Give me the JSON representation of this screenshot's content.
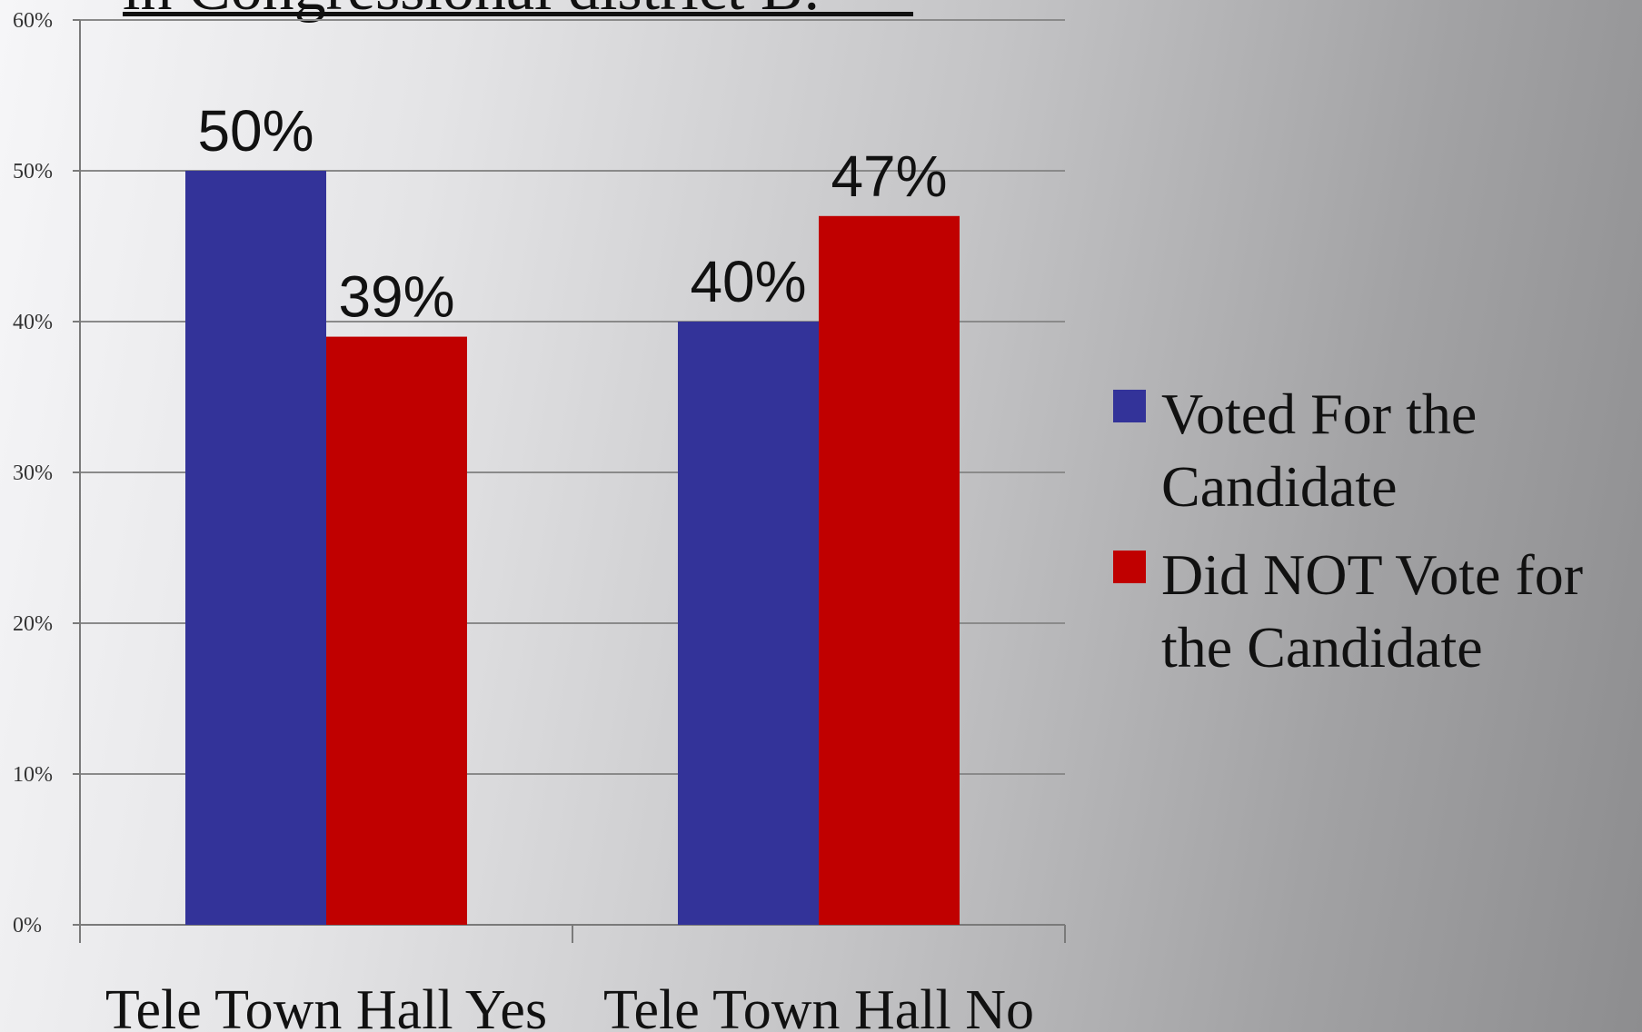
{
  "chart_data": {
    "type": "bar",
    "title": "in Congressional district B:",
    "categories": [
      "Tele Town Hall Yes",
      "Tele Town Hall No"
    ],
    "series": [
      {
        "name": "Voted For the Candidate",
        "values": [
          50,
          40
        ],
        "color": "#333399",
        "data_labels": [
          "50%",
          "40%"
        ]
      },
      {
        "name": "Did NOT Vote for the Candidate",
        "values": [
          39,
          47
        ],
        "color": "#c00000",
        "data_labels": [
          "39%",
          "47%"
        ]
      }
    ],
    "ylim": [
      0,
      60
    ],
    "yticks": [
      0,
      10,
      20,
      30,
      40,
      50,
      60
    ],
    "ytick_labels": [
      "0%",
      "10%",
      "20%",
      "30%",
      "40%",
      "50%",
      "60%"
    ],
    "xlabel": "",
    "ylabel": "",
    "grid": true,
    "legend_position": "right",
    "legend_lines": [
      [
        "Voted For the",
        "Candidate"
      ],
      [
        "Did NOT Vote for",
        "the Candidate"
      ]
    ]
  }
}
